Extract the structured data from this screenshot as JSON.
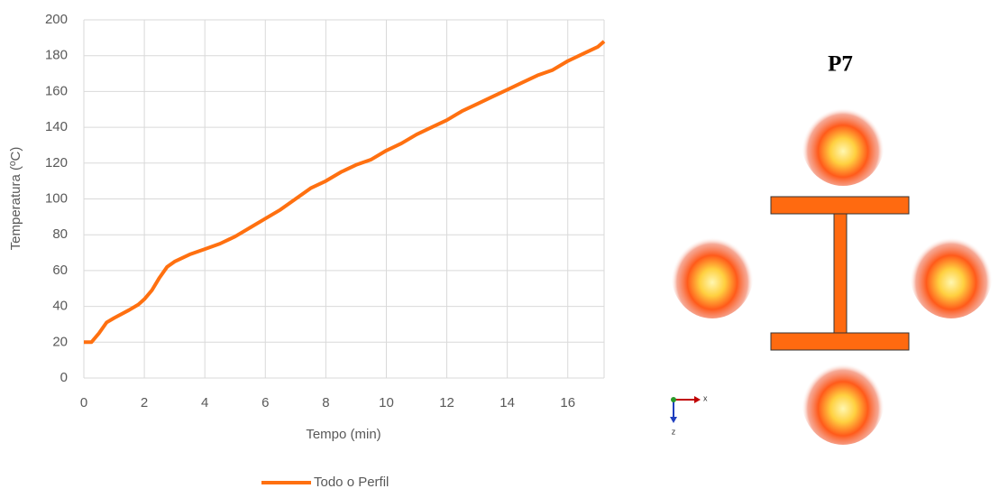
{
  "chart_data": {
    "type": "line",
    "xlabel": "Tempo (min)",
    "ylabel": "Temperatura (ºC)",
    "x": [
      0,
      0.25,
      0.5,
      0.75,
      1,
      1.5,
      1.8,
      2,
      2.25,
      2.5,
      2.75,
      3,
      3.5,
      4,
      4.5,
      5,
      5.5,
      6,
      6.5,
      7,
      7.5,
      8,
      8.5,
      9,
      9.5,
      10,
      10.5,
      11,
      11.5,
      12,
      12.5,
      13,
      13.5,
      14,
      14.5,
      15,
      15.5,
      16,
      16.5,
      17,
      17.2
    ],
    "series": [
      {
        "name": "Todo o Perfil",
        "color": "#ff7010",
        "values": [
          20,
          20,
          25,
          31,
          33.5,
          38,
          41,
          44,
          49,
          56,
          62,
          65,
          69,
          72,
          75,
          79,
          84,
          89,
          94,
          100,
          106,
          110,
          115,
          119,
          122,
          127,
          131,
          136,
          140,
          144,
          149,
          153,
          157,
          161,
          165,
          169,
          172,
          177,
          181,
          185,
          188
        ]
      }
    ],
    "xlim": [
      0,
      17.2
    ],
    "xticks": [
      0,
      2,
      4,
      6,
      8,
      10,
      12,
      14,
      16
    ],
    "ylim": [
      0,
      200
    ],
    "yticks": [
      0,
      20,
      40,
      60,
      80,
      100,
      120,
      140,
      160,
      180,
      200
    ],
    "grid": true,
    "legend": "bottom"
  },
  "diagram": {
    "title": "P7",
    "axis_labels": [
      "x",
      "z"
    ]
  }
}
